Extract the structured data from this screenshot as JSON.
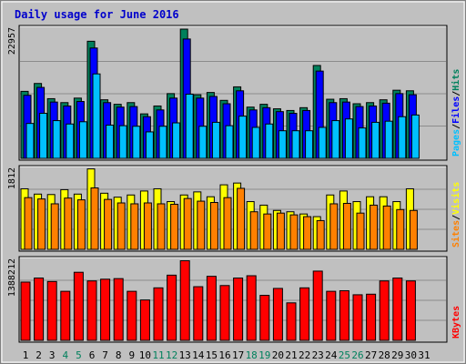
{
  "chart_data": {
    "type": "bar",
    "title": "Daily usage for June 2016",
    "days": [
      "1",
      "2",
      "3",
      "4",
      "5",
      "6",
      "7",
      "8",
      "9",
      "10",
      "11",
      "12",
      "13",
      "14",
      "15",
      "16",
      "17",
      "18",
      "19",
      "20",
      "21",
      "22",
      "23",
      "24",
      "25",
      "26",
      "27",
      "28",
      "29",
      "30",
      "31"
    ],
    "weekend_days": [
      "4",
      "5",
      "11",
      "12",
      "18",
      "19",
      "25",
      "26"
    ],
    "panels": [
      {
        "id": "hits",
        "max_label": "22957",
        "ymax": 22957,
        "series": [
          {
            "name": "Hits",
            "color": "#00805c",
            "values": [
              11900,
              13300,
              10600,
              9900,
              10700,
              20800,
              10400,
              9600,
              9900,
              7900,
              9300,
              11500,
              22950,
              11300,
              11700,
              10300,
              12700,
              9100,
              9600,
              8800,
              8500,
              9000,
              16500,
              10500,
              10600,
              9700,
              9900,
              10400,
              12100,
              12000,
              0
            ]
          },
          {
            "name": "Files",
            "color": "#0000ff",
            "values": [
              11200,
              12600,
              10000,
              9300,
              10100,
              19600,
              9900,
              9100,
              9200,
              7400,
              8600,
              10700,
              21200,
              10700,
              11000,
              9700,
              12000,
              8600,
              9000,
              8300,
              8000,
              8500,
              15500,
              9900,
              10000,
              9200,
              9300,
              9800,
              11500,
              11300,
              0
            ]
          },
          {
            "name": "Pages",
            "color": "#00c0ff",
            "values": [
              6200,
              8000,
              6700,
              6100,
              6500,
              15000,
              5900,
              5800,
              5700,
              4700,
              5700,
              6300,
              11400,
              5700,
              6400,
              5800,
              7500,
              5500,
              6100,
              4900,
              4900,
              4900,
              5500,
              6700,
              7000,
              5400,
              6400,
              6600,
              7400,
              7700,
              0
            ]
          }
        ],
        "labels": [
          "Pages",
          "/",
          "Files",
          "/",
          "Hits"
        ],
        "label_colors": [
          "#00c0ff",
          "#000000",
          "#0000ff",
          "#000000",
          "#00805c"
        ]
      },
      {
        "id": "visits",
        "max_label": "1812",
        "ymax": 1812,
        "series": [
          {
            "name": "Visits",
            "color": "#ffff00",
            "values": [
              1370,
              1250,
              1240,
              1350,
              1250,
              1820,
              1270,
              1180,
              1230,
              1320,
              1370,
              1080,
              1230,
              1300,
              1190,
              1460,
              1500,
              1080,
              1000,
              880,
              850,
              800,
              740,
              1230,
              1320,
              1080,
              1190,
              1190,
              1080,
              1370,
              0
            ]
          },
          {
            "name": "Sites",
            "color": "#ff8000",
            "values": [
              1170,
              1140,
              1030,
              1160,
              1120,
              1390,
              1130,
              1050,
              1030,
              1050,
              1030,
              1020,
              1150,
              1090,
              1060,
              1170,
              1380,
              850,
              800,
              820,
              780,
              740,
              650,
              1030,
              1040,
              820,
              1000,
              980,
              900,
              880,
              0
            ]
          }
        ],
        "labels": [
          "Sites",
          "/",
          "Visits"
        ],
        "label_colors": [
          "#ff8000",
          "#000000",
          "#ffff00"
        ]
      },
      {
        "id": "kbytes",
        "max_label": "1388212",
        "ymax": 1388212,
        "series": [
          {
            "name": "KBytes",
            "color": "#ff0000",
            "values": [
              1010000,
              1080000,
              1020000,
              850000,
              1180000,
              1030000,
              1060000,
              1070000,
              850000,
              700000,
              910000,
              1130000,
              1380000,
              930000,
              1110000,
              950000,
              1080000,
              1120000,
              780000,
              900000,
              650000,
              910000,
              1200000,
              850000,
              860000,
              790000,
              800000,
              1030000,
              1080000,
              1030000,
              0
            ]
          }
        ],
        "labels": [
          "KBytes"
        ],
        "label_colors": [
          "#ff0000"
        ]
      }
    ]
  }
}
